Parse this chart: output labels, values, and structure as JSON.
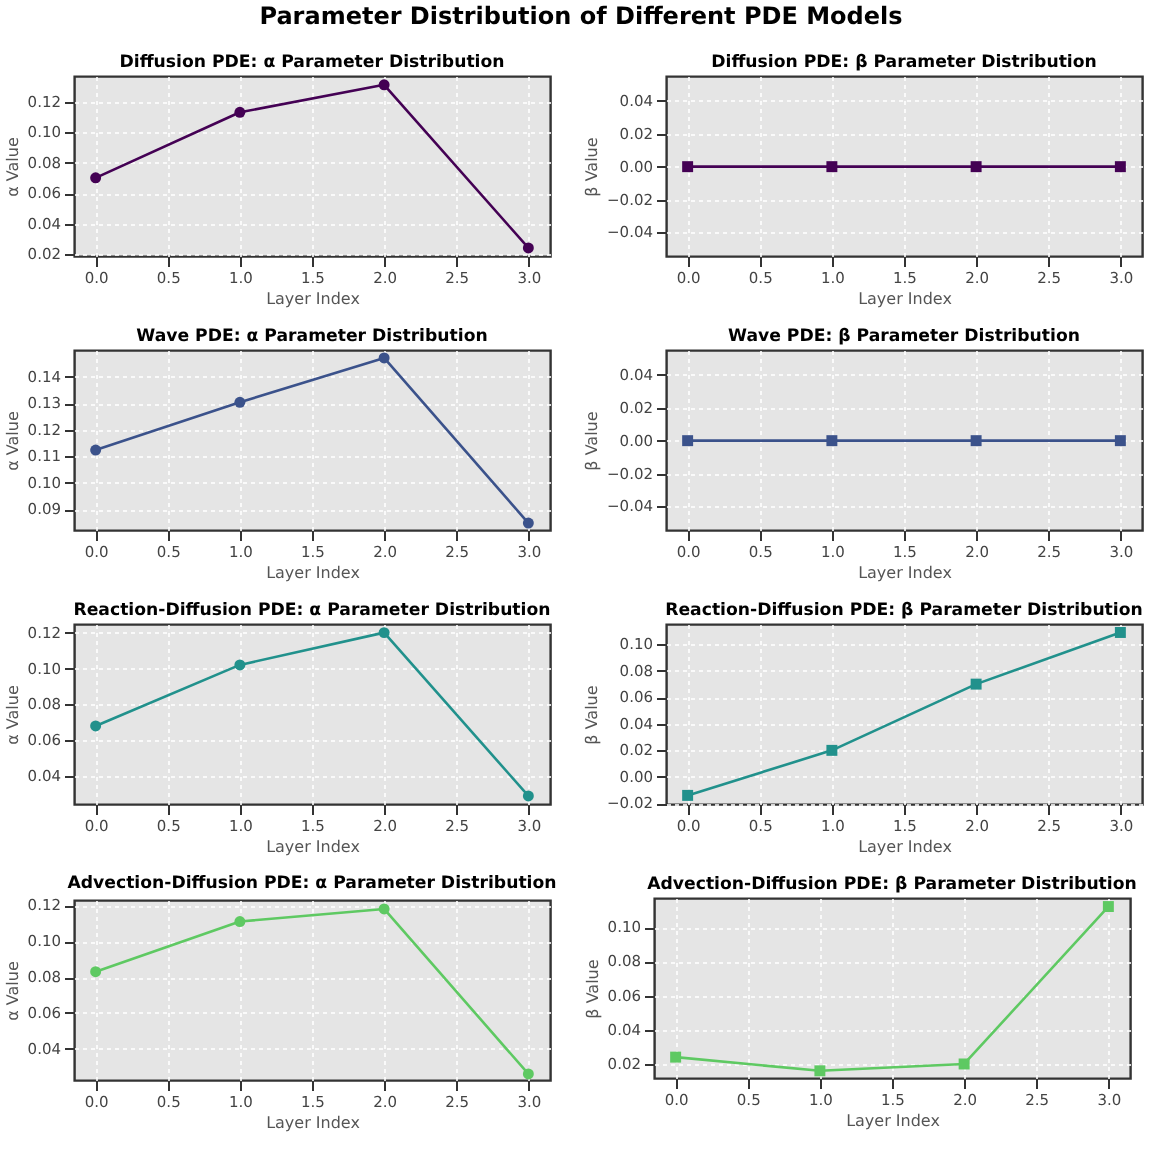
{
  "chart_data": [
    {
      "type": "line",
      "title": "Diffusion PDE: α Parameter Distribution",
      "annotations": [
        "Parameter Distribution of Different PDE Models"
      ],
      "xlabel": "Layer Index",
      "ylabel": "α Value",
      "x": [
        0,
        1,
        2,
        3
      ],
      "series": [
        {
          "color": "#440154",
          "values": [
            0.07,
            0.113,
            0.131,
            0.024
          ]
        }
      ],
      "marker": "circle",
      "grid": true,
      "xlim": [
        -0.15,
        3.15
      ],
      "xticks": [
        {
          "value": 0,
          "label": "0.0"
        },
        0.5,
        {
          "value": 1,
          "label": "1.0"
        },
        1.5,
        {
          "value": 2,
          "label": "2.0"
        },
        2.5,
        {
          "value": 3,
          "label": "3.0"
        }
      ],
      "ylim": [
        0.0187,
        0.1368
      ],
      "yticks": [
        0.02,
        0.04,
        0.06,
        0.08,
        {
          "value": 0.1,
          "label": "0.10"
        },
        0.12
      ]
    },
    {
      "type": "line",
      "title": "Diffusion PDE: β Parameter Distribution",
      "xlabel": "Layer Index",
      "ylabel": "β Value",
      "x": [
        0,
        1,
        2,
        3
      ],
      "series": [
        {
          "color": "#440154",
          "values": [
            0,
            0,
            0,
            0
          ]
        }
      ],
      "marker": "square",
      "grid": true,
      "xlim": [
        -0.15,
        3.15
      ],
      "xticks": [
        {
          "value": 0,
          "label": "0.0"
        },
        0.5,
        {
          "value": 1,
          "label": "1.0"
        },
        1.5,
        {
          "value": 2,
          "label": "2.0"
        },
        2.5,
        {
          "value": 3,
          "label": "3.0"
        }
      ],
      "ylim": [
        -0.0544,
        0.0552
      ],
      "yticks": [
        {
          "value": -0.04,
          "label": "−0.04"
        },
        {
          "value": -0.02,
          "label": "−0.02"
        },
        {
          "value": 0,
          "label": "0.00"
        },
        0.02,
        0.04
      ]
    },
    {
      "type": "line",
      "title": "Wave PDE: α Parameter Distribution",
      "xlabel": "Layer Index",
      "ylabel": "α Value",
      "x": [
        0,
        1,
        2,
        3
      ],
      "series": [
        {
          "color": "#3b528b",
          "values": [
            0.1123,
            0.1303,
            0.147,
            0.0848
          ]
        }
      ],
      "marker": "circle",
      "grid": true,
      "xlim": [
        -0.15,
        3.15
      ],
      "xticks": [
        {
          "value": 0,
          "label": "0.0"
        },
        0.5,
        {
          "value": 1,
          "label": "1.0"
        },
        1.5,
        {
          "value": 2,
          "label": "2.0"
        },
        2.5,
        {
          "value": 3,
          "label": "3.0"
        }
      ],
      "ylim": [
        0.0822,
        0.15
      ],
      "yticks": [
        0.09,
        {
          "value": 0.1,
          "label": "0.10"
        },
        0.11,
        0.12,
        0.13,
        0.14
      ]
    },
    {
      "type": "line",
      "title": "Wave PDE: β Parameter Distribution",
      "xlabel": "Layer Index",
      "ylabel": "β Value",
      "x": [
        0,
        1,
        2,
        3
      ],
      "series": [
        {
          "color": "#3b528b",
          "values": [
            0,
            0,
            0,
            0
          ]
        }
      ],
      "marker": "square",
      "grid": true,
      "xlim": [
        -0.15,
        3.15
      ],
      "xticks": [
        {
          "value": 0,
          "label": "0.0"
        },
        0.5,
        {
          "value": 1,
          "label": "1.0"
        },
        1.5,
        {
          "value": 2,
          "label": "2.0"
        },
        2.5,
        {
          "value": 3,
          "label": "3.0"
        }
      ],
      "ylim": [
        -0.0544,
        0.0552
      ],
      "yticks": [
        {
          "value": -0.04,
          "label": "−0.04"
        },
        {
          "value": -0.02,
          "label": "−0.02"
        },
        {
          "value": 0,
          "label": "0.00"
        },
        0.02,
        0.04
      ]
    },
    {
      "type": "line",
      "title": "Reaction-Diffusion PDE: α Parameter Distribution",
      "xlabel": "Layer Index",
      "ylabel": "α Value",
      "x": [
        0,
        1,
        2,
        3
      ],
      "series": [
        {
          "color": "#21918c",
          "values": [
            0.068,
            0.102,
            0.12,
            0.029
          ]
        }
      ],
      "marker": "circle",
      "grid": true,
      "xlim": [
        -0.15,
        3.15
      ],
      "xticks": [
        {
          "value": 0,
          "label": "0.0"
        },
        0.5,
        {
          "value": 1,
          "label": "1.0"
        },
        1.5,
        {
          "value": 2,
          "label": "2.0"
        },
        2.5,
        {
          "value": 3,
          "label": "3.0"
        }
      ],
      "ylim": [
        0.0245,
        0.1248
      ],
      "yticks": [
        0.04,
        0.06,
        0.08,
        {
          "value": 0.1,
          "label": "0.10"
        },
        0.12
      ]
    },
    {
      "type": "line",
      "title": "Reaction-Diffusion PDE: β Parameter Distribution",
      "xlabel": "Layer Index",
      "ylabel": "β Value",
      "x": [
        0,
        1,
        2,
        3
      ],
      "series": [
        {
          "color": "#21918c",
          "values": [
            -0.014,
            0.02,
            0.07,
            0.109
          ]
        }
      ],
      "marker": "square",
      "grid": true,
      "xlim": [
        -0.15,
        3.15
      ],
      "xticks": [
        {
          "value": 0,
          "label": "0.0"
        },
        0.5,
        {
          "value": 1,
          "label": "1.0"
        },
        1.5,
        {
          "value": 2,
          "label": "2.0"
        },
        2.5,
        {
          "value": 3,
          "label": "3.0"
        }
      ],
      "ylim": [
        -0.0205,
        0.1154
      ],
      "yticks": [
        {
          "value": -0.02,
          "label": "−0.02"
        },
        {
          "value": 0,
          "label": "0.00"
        },
        0.02,
        0.04,
        0.06,
        0.08,
        {
          "value": 0.1,
          "label": "0.10"
        }
      ]
    },
    {
      "type": "line",
      "title": "Advection-Diffusion PDE: α Parameter Distribution",
      "xlabel": "Layer Index",
      "ylabel": "α Value",
      "x": [
        0,
        1,
        2,
        3
      ],
      "series": [
        {
          "color": "#5ec962",
          "values": [
            0.083,
            0.111,
            0.118,
            0.026
          ]
        }
      ],
      "marker": "circle",
      "grid": true,
      "xlim": [
        -0.15,
        3.15
      ],
      "xticks": [
        {
          "value": 0,
          "label": "0.0"
        },
        0.5,
        {
          "value": 1,
          "label": "1.0"
        },
        1.5,
        {
          "value": 2,
          "label": "2.0"
        },
        2.5,
        {
          "value": 3,
          "label": "3.0"
        }
      ],
      "ylim": [
        0.0226,
        0.123
      ],
      "yticks": [
        0.04,
        0.06,
        0.08,
        {
          "value": 0.1,
          "label": "0.10"
        },
        0.12
      ]
    },
    {
      "type": "line",
      "title": "Advection-Diffusion PDE: β Parameter Distribution",
      "xlabel": "Layer Index",
      "ylabel": "β Value",
      "x": [
        0,
        1,
        2,
        3
      ],
      "series": [
        {
          "color": "#5ec962",
          "values": [
            0.024,
            0.016,
            0.02,
            0.112
          ]
        }
      ],
      "marker": "square",
      "grid": true,
      "xlim": [
        -0.15,
        3.15
      ],
      "xticks": [
        {
          "value": 0,
          "label": "0.0"
        },
        0.5,
        {
          "value": 1,
          "label": "1.0"
        },
        1.5,
        {
          "value": 2,
          "label": "2.0"
        },
        2.5,
        {
          "value": 3,
          "label": "3.0"
        }
      ],
      "ylim": [
        0.0118,
        0.117
      ],
      "yticks": [
        0.02,
        0.04,
        0.06,
        0.08,
        {
          "value": 0.1,
          "label": "0.10"
        }
      ]
    }
  ]
}
